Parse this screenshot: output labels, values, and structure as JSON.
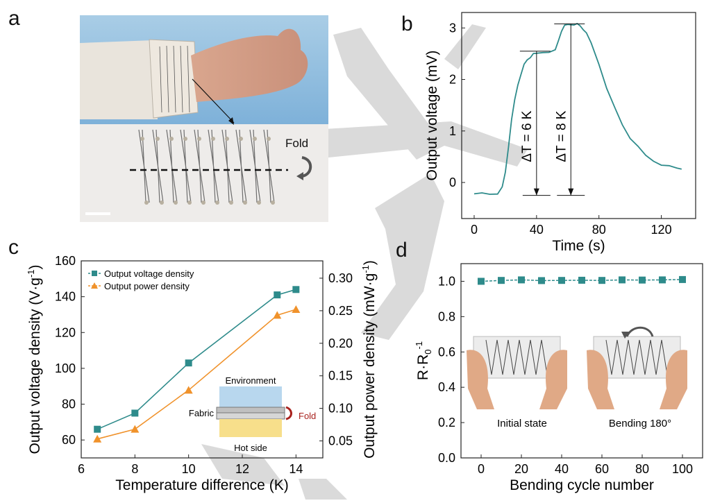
{
  "panels": {
    "a": "a",
    "b": "b",
    "c": "c",
    "d": "d"
  },
  "photo_a": {
    "fold_label": "Fold"
  },
  "chart_data": [
    {
      "panel": "b",
      "type": "line",
      "xlabel": "Time (s)",
      "ylabel": "Output voltage (mV)",
      "xlim": [
        -8,
        142
      ],
      "ylim": [
        -0.7,
        3.3
      ],
      "xticks": [
        0,
        40,
        80,
        120
      ],
      "yticks": [
        0,
        1,
        2,
        3
      ],
      "color": "#2e8b8b",
      "series": [
        {
          "x": [
            0,
            5,
            10,
            15,
            18,
            20,
            22,
            24,
            26,
            28,
            30,
            32,
            34,
            36,
            38,
            40,
            44,
            48,
            52,
            54,
            56,
            58,
            60,
            62,
            64,
            66,
            68,
            70,
            72,
            75,
            80,
            85,
            90,
            95,
            100,
            105,
            110,
            115,
            120,
            125,
            130,
            133
          ],
          "y": [
            -0.22,
            -0.21,
            -0.22,
            -0.2,
            -0.1,
            0.2,
            0.7,
            1.2,
            1.6,
            1.9,
            2.12,
            2.28,
            2.38,
            2.44,
            2.48,
            2.5,
            2.53,
            2.55,
            2.56,
            2.75,
            2.95,
            3.03,
            3.06,
            3.07,
            3.08,
            3.07,
            3.04,
            2.98,
            2.88,
            2.7,
            2.3,
            1.85,
            1.45,
            1.12,
            0.87,
            0.68,
            0.52,
            0.42,
            0.36,
            0.31,
            0.28,
            0.26
          ]
        }
      ],
      "annotations": [
        {
          "text": "ΔT = 6 K",
          "x": 40,
          "y_top": 2.55,
          "y_bottom": -0.25
        },
        {
          "text": "ΔT = 8 K",
          "x": 62,
          "y_top": 3.08,
          "y_bottom": -0.25
        }
      ]
    },
    {
      "panel": "c",
      "type": "line",
      "xlabel": "Temperature difference (K)",
      "ylabel": "Output voltage density (V·g",
      "ylabel_sup": "-1",
      "ylabel_end": ")",
      "y2label": "Output power density (mW·g",
      "y2label_sup": "-1",
      "y2label_end": ")",
      "xlim": [
        6,
        15
      ],
      "ylim": [
        50,
        160
      ],
      "y2lim": [
        0.0239,
        0.3266
      ],
      "xticks": [
        6,
        8,
        10,
        12,
        14
      ],
      "yticks": [
        60,
        80,
        100,
        120,
        140,
        160
      ],
      "y2ticks": [
        "0.05",
        "0.10",
        "0.15",
        "0.20",
        "0.25",
        "0.30"
      ],
      "series": [
        {
          "name": "Output voltage density",
          "axis": "left",
          "color": "#2e8b8b",
          "marker": "square",
          "x": [
            6.6,
            8,
            10,
            13.3,
            14
          ],
          "y": [
            66,
            75,
            103,
            141,
            144
          ]
        },
        {
          "name": "Output power density",
          "axis": "right",
          "color": "#f0922b",
          "marker": "triangle",
          "x": [
            6.6,
            8,
            10,
            13.3,
            14
          ],
          "y": [
            0.053,
            0.068,
            0.128,
            0.243,
            0.252
          ]
        }
      ],
      "legend_position": "top-left",
      "inset": {
        "top_label": "Environment",
        "left_label": "Fabric",
        "right_label": "Fold",
        "bottom_label": "Hot side"
      }
    },
    {
      "panel": "d",
      "type": "line",
      "xlabel": "Bending cycle number",
      "ylabel": "R·R",
      "ylabel_sub": "0",
      "ylabel_sup": "-1",
      "xlim": [
        -10,
        110
      ],
      "ylim": [
        0,
        1.1
      ],
      "xticks": [
        0,
        20,
        40,
        60,
        80,
        100
      ],
      "yticks": [
        "0.0",
        "0.2",
        "0.4",
        "0.6",
        "0.8",
        "1.0"
      ],
      "series": [
        {
          "color": "#2e8b8b",
          "marker": "square",
          "x": [
            0,
            10,
            20,
            30,
            40,
            50,
            60,
            70,
            80,
            90,
            100
          ],
          "y": [
            1.0,
            1.005,
            1.008,
            1.004,
            1.005,
            1.006,
            1.005,
            1.008,
            1.007,
            1.008,
            1.01
          ]
        }
      ],
      "inset_labels": {
        "left": "Initial state",
        "right": "Bending 180°"
      }
    }
  ]
}
